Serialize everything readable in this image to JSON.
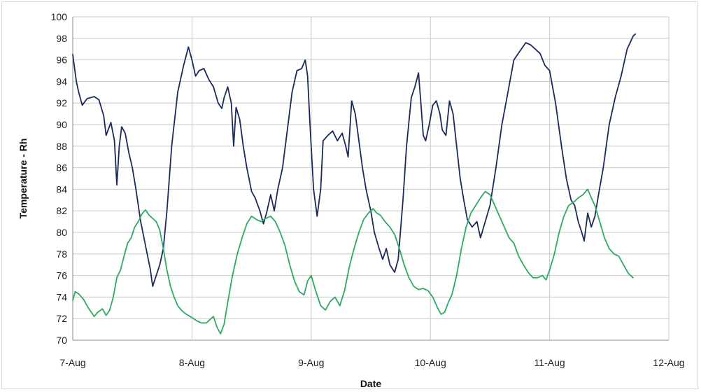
{
  "chart_data": {
    "type": "line",
    "title": "",
    "xlabel": "Date",
    "ylabel": "Temperature - Rh",
    "ylim": [
      70,
      100
    ],
    "yticks": [
      70,
      72,
      74,
      76,
      78,
      80,
      82,
      84,
      86,
      88,
      90,
      92,
      94,
      96,
      98,
      100
    ],
    "xlim": [
      "7-Aug",
      "12-Aug"
    ],
    "xticks": [
      "7-Aug",
      "8-Aug",
      "9-Aug",
      "10-Aug",
      "11-Aug",
      "12-Aug"
    ],
    "grid": "vertical and horizontal major gridlines",
    "legend": "none",
    "series": [
      {
        "color": "#1b2a5a",
        "x_unit": "days after 7-Aug",
        "points": [
          [
            0.0,
            96.5
          ],
          [
            0.03,
            94.0
          ],
          [
            0.05,
            93.0
          ],
          [
            0.08,
            91.8
          ],
          [
            0.12,
            92.4
          ],
          [
            0.18,
            92.6
          ],
          [
            0.22,
            92.3
          ],
          [
            0.26,
            90.8
          ],
          [
            0.28,
            89.0
          ],
          [
            0.32,
            90.2
          ],
          [
            0.35,
            88.5
          ],
          [
            0.37,
            84.4
          ],
          [
            0.39,
            88.0
          ],
          [
            0.41,
            89.8
          ],
          [
            0.44,
            89.2
          ],
          [
            0.47,
            87.4
          ],
          [
            0.5,
            86.0
          ],
          [
            0.53,
            84.0
          ],
          [
            0.57,
            81.0
          ],
          [
            0.61,
            78.8
          ],
          [
            0.65,
            76.6
          ],
          [
            0.67,
            75.0
          ],
          [
            0.7,
            76.0
          ],
          [
            0.73,
            77.0
          ],
          [
            0.76,
            78.5
          ],
          [
            0.79,
            82.0
          ],
          [
            0.83,
            88.0
          ],
          [
            0.88,
            93.0
          ],
          [
            0.93,
            95.5
          ],
          [
            0.97,
            97.2
          ],
          [
            1.0,
            96.0
          ],
          [
            1.03,
            94.5
          ],
          [
            1.06,
            95.0
          ],
          [
            1.1,
            95.2
          ],
          [
            1.14,
            94.2
          ],
          [
            1.18,
            93.5
          ],
          [
            1.22,
            92.0
          ],
          [
            1.25,
            91.5
          ],
          [
            1.27,
            92.5
          ],
          [
            1.3,
            93.5
          ],
          [
            1.33,
            92.0
          ],
          [
            1.35,
            88.0
          ],
          [
            1.37,
            91.6
          ],
          [
            1.4,
            90.5
          ],
          [
            1.43,
            88.0
          ],
          [
            1.46,
            86.0
          ],
          [
            1.5,
            83.8
          ],
          [
            1.53,
            83.2
          ],
          [
            1.57,
            82.0
          ],
          [
            1.6,
            80.8
          ],
          [
            1.63,
            82.0
          ],
          [
            1.66,
            83.5
          ],
          [
            1.69,
            82.0
          ],
          [
            1.72,
            84.0
          ],
          [
            1.76,
            86.0
          ],
          [
            1.8,
            89.5
          ],
          [
            1.84,
            93.0
          ],
          [
            1.88,
            95.0
          ],
          [
            1.92,
            95.2
          ],
          [
            1.95,
            96.0
          ],
          [
            1.97,
            94.5
          ],
          [
            1.99,
            90.0
          ],
          [
            2.02,
            84.0
          ],
          [
            2.05,
            81.5
          ],
          [
            2.08,
            84.0
          ],
          [
            2.1,
            88.5
          ],
          [
            2.14,
            89.0
          ],
          [
            2.18,
            89.4
          ],
          [
            2.22,
            88.5
          ],
          [
            2.26,
            89.2
          ],
          [
            2.29,
            88.0
          ],
          [
            2.31,
            87.0
          ],
          [
            2.34,
            92.2
          ],
          [
            2.37,
            91.0
          ],
          [
            2.4,
            88.5
          ],
          [
            2.43,
            86.0
          ],
          [
            2.46,
            84.0
          ],
          [
            2.5,
            82.0
          ],
          [
            2.53,
            80.0
          ],
          [
            2.57,
            78.5
          ],
          [
            2.6,
            77.5
          ],
          [
            2.63,
            78.5
          ],
          [
            2.66,
            77.0
          ],
          [
            2.7,
            76.3
          ],
          [
            2.73,
            77.5
          ],
          [
            2.77,
            83.0
          ],
          [
            2.8,
            88.0
          ],
          [
            2.84,
            92.5
          ],
          [
            2.87,
            93.5
          ],
          [
            2.9,
            94.8
          ],
          [
            2.92,
            92.0
          ],
          [
            2.94,
            89.0
          ],
          [
            2.96,
            88.5
          ],
          [
            2.99,
            90.0
          ],
          [
            3.02,
            91.8
          ],
          [
            3.05,
            92.2
          ],
          [
            3.08,
            91.0
          ],
          [
            3.1,
            89.5
          ],
          [
            3.13,
            89.0
          ],
          [
            3.16,
            92.2
          ],
          [
            3.19,
            91.0
          ],
          [
            3.22,
            88.0
          ],
          [
            3.25,
            85.0
          ],
          [
            3.28,
            83.0
          ],
          [
            3.31,
            81.2
          ],
          [
            3.35,
            80.5
          ],
          [
            3.39,
            81.0
          ],
          [
            3.42,
            79.5
          ],
          [
            3.46,
            81.0
          ],
          [
            3.5,
            82.5
          ],
          [
            3.55,
            86.0
          ],
          [
            3.6,
            90.0
          ],
          [
            3.65,
            93.0
          ],
          [
            3.7,
            96.0
          ],
          [
            3.75,
            96.8
          ],
          [
            3.8,
            97.6
          ],
          [
            3.84,
            97.4
          ],
          [
            3.88,
            97.0
          ],
          [
            3.92,
            96.6
          ],
          [
            3.96,
            95.5
          ],
          [
            4.0,
            95.0
          ],
          [
            4.05,
            92.0
          ],
          [
            4.1,
            88.0
          ],
          [
            4.14,
            85.0
          ],
          [
            4.18,
            83.0
          ],
          [
            4.21,
            82.5
          ],
          [
            4.24,
            81.0
          ],
          [
            4.27,
            80.0
          ],
          [
            4.29,
            79.2
          ],
          [
            4.32,
            81.8
          ],
          [
            4.35,
            80.5
          ],
          [
            4.38,
            81.5
          ],
          [
            4.41,
            83.5
          ],
          [
            4.45,
            86.0
          ],
          [
            4.5,
            90.0
          ],
          [
            4.55,
            92.5
          ],
          [
            4.6,
            94.5
          ],
          [
            4.65,
            97.0
          ],
          [
            4.7,
            98.2
          ],
          [
            4.72,
            98.4
          ]
        ]
      },
      {
        "color": "#2eaa62",
        "x_unit": "days after 7-Aug",
        "points": [
          [
            0.0,
            73.7
          ],
          [
            0.02,
            74.5
          ],
          [
            0.05,
            74.3
          ],
          [
            0.09,
            73.8
          ],
          [
            0.13,
            73.0
          ],
          [
            0.18,
            72.2
          ],
          [
            0.21,
            72.6
          ],
          [
            0.25,
            72.9
          ],
          [
            0.28,
            72.3
          ],
          [
            0.31,
            72.8
          ],
          [
            0.34,
            74.0
          ],
          [
            0.37,
            75.8
          ],
          [
            0.4,
            76.5
          ],
          [
            0.43,
            77.8
          ],
          [
            0.46,
            79.0
          ],
          [
            0.49,
            79.5
          ],
          [
            0.52,
            80.5
          ],
          [
            0.55,
            81.0
          ],
          [
            0.58,
            81.7
          ],
          [
            0.61,
            82.1
          ],
          [
            0.64,
            81.6
          ],
          [
            0.67,
            81.3
          ],
          [
            0.7,
            81.0
          ],
          [
            0.73,
            80.2
          ],
          [
            0.76,
            78.5
          ],
          [
            0.79,
            76.5
          ],
          [
            0.82,
            75.0
          ],
          [
            0.85,
            74.0
          ],
          [
            0.88,
            73.2
          ],
          [
            0.91,
            72.8
          ],
          [
            0.94,
            72.5
          ],
          [
            0.97,
            72.3
          ],
          [
            1.0,
            72.1
          ],
          [
            1.04,
            71.8
          ],
          [
            1.08,
            71.6
          ],
          [
            1.12,
            71.6
          ],
          [
            1.15,
            71.9
          ],
          [
            1.18,
            72.2
          ],
          [
            1.21,
            71.2
          ],
          [
            1.24,
            70.6
          ],
          [
            1.27,
            71.5
          ],
          [
            1.3,
            73.5
          ],
          [
            1.34,
            76.0
          ],
          [
            1.38,
            78.0
          ],
          [
            1.42,
            79.5
          ],
          [
            1.46,
            80.8
          ],
          [
            1.5,
            81.5
          ],
          [
            1.54,
            81.2
          ],
          [
            1.58,
            81.0
          ],
          [
            1.62,
            81.3
          ],
          [
            1.66,
            81.5
          ],
          [
            1.7,
            81.0
          ],
          [
            1.74,
            80.0
          ],
          [
            1.78,
            78.8
          ],
          [
            1.82,
            77.0
          ],
          [
            1.86,
            75.5
          ],
          [
            1.9,
            74.5
          ],
          [
            1.94,
            74.2
          ],
          [
            1.97,
            75.5
          ],
          [
            2.0,
            76.0
          ],
          [
            2.04,
            74.5
          ],
          [
            2.08,
            73.2
          ],
          [
            2.12,
            72.8
          ],
          [
            2.16,
            73.6
          ],
          [
            2.2,
            74.0
          ],
          [
            2.24,
            73.2
          ],
          [
            2.28,
            74.6
          ],
          [
            2.32,
            76.8
          ],
          [
            2.36,
            78.5
          ],
          [
            2.4,
            80.0
          ],
          [
            2.44,
            81.2
          ],
          [
            2.48,
            81.8
          ],
          [
            2.52,
            82.2
          ],
          [
            2.55,
            81.8
          ],
          [
            2.58,
            81.6
          ],
          [
            2.62,
            81.0
          ],
          [
            2.66,
            80.5
          ],
          [
            2.7,
            79.8
          ],
          [
            2.74,
            78.5
          ],
          [
            2.78,
            77.0
          ],
          [
            2.82,
            75.8
          ],
          [
            2.86,
            75.0
          ],
          [
            2.9,
            74.7
          ],
          [
            2.94,
            74.8
          ],
          [
            2.98,
            74.6
          ],
          [
            3.02,
            74.0
          ],
          [
            3.06,
            73.0
          ],
          [
            3.09,
            72.4
          ],
          [
            3.12,
            72.6
          ],
          [
            3.15,
            73.5
          ],
          [
            3.18,
            74.2
          ],
          [
            3.22,
            76.0
          ],
          [
            3.26,
            78.5
          ],
          [
            3.3,
            80.5
          ],
          [
            3.34,
            81.8
          ],
          [
            3.38,
            82.5
          ],
          [
            3.42,
            83.2
          ],
          [
            3.46,
            83.8
          ],
          [
            3.5,
            83.5
          ],
          [
            3.54,
            82.5
          ],
          [
            3.58,
            81.5
          ],
          [
            3.62,
            80.5
          ],
          [
            3.66,
            79.5
          ],
          [
            3.7,
            79.0
          ],
          [
            3.74,
            77.8
          ],
          [
            3.78,
            77.0
          ],
          [
            3.82,
            76.3
          ],
          [
            3.86,
            75.8
          ],
          [
            3.9,
            75.8
          ],
          [
            3.94,
            76.0
          ],
          [
            3.97,
            75.6
          ],
          [
            4.0,
            76.5
          ],
          [
            4.04,
            78.0
          ],
          [
            4.08,
            80.0
          ],
          [
            4.12,
            81.5
          ],
          [
            4.16,
            82.5
          ],
          [
            4.2,
            82.8
          ],
          [
            4.24,
            83.2
          ],
          [
            4.28,
            83.5
          ],
          [
            4.32,
            84.0
          ],
          [
            4.35,
            83.2
          ],
          [
            4.38,
            82.5
          ],
          [
            4.42,
            81.0
          ],
          [
            4.46,
            79.5
          ],
          [
            4.5,
            78.5
          ],
          [
            4.54,
            78.0
          ],
          [
            4.58,
            77.8
          ],
          [
            4.62,
            77.0
          ],
          [
            4.66,
            76.2
          ],
          [
            4.7,
            75.8
          ]
        ]
      }
    ]
  }
}
